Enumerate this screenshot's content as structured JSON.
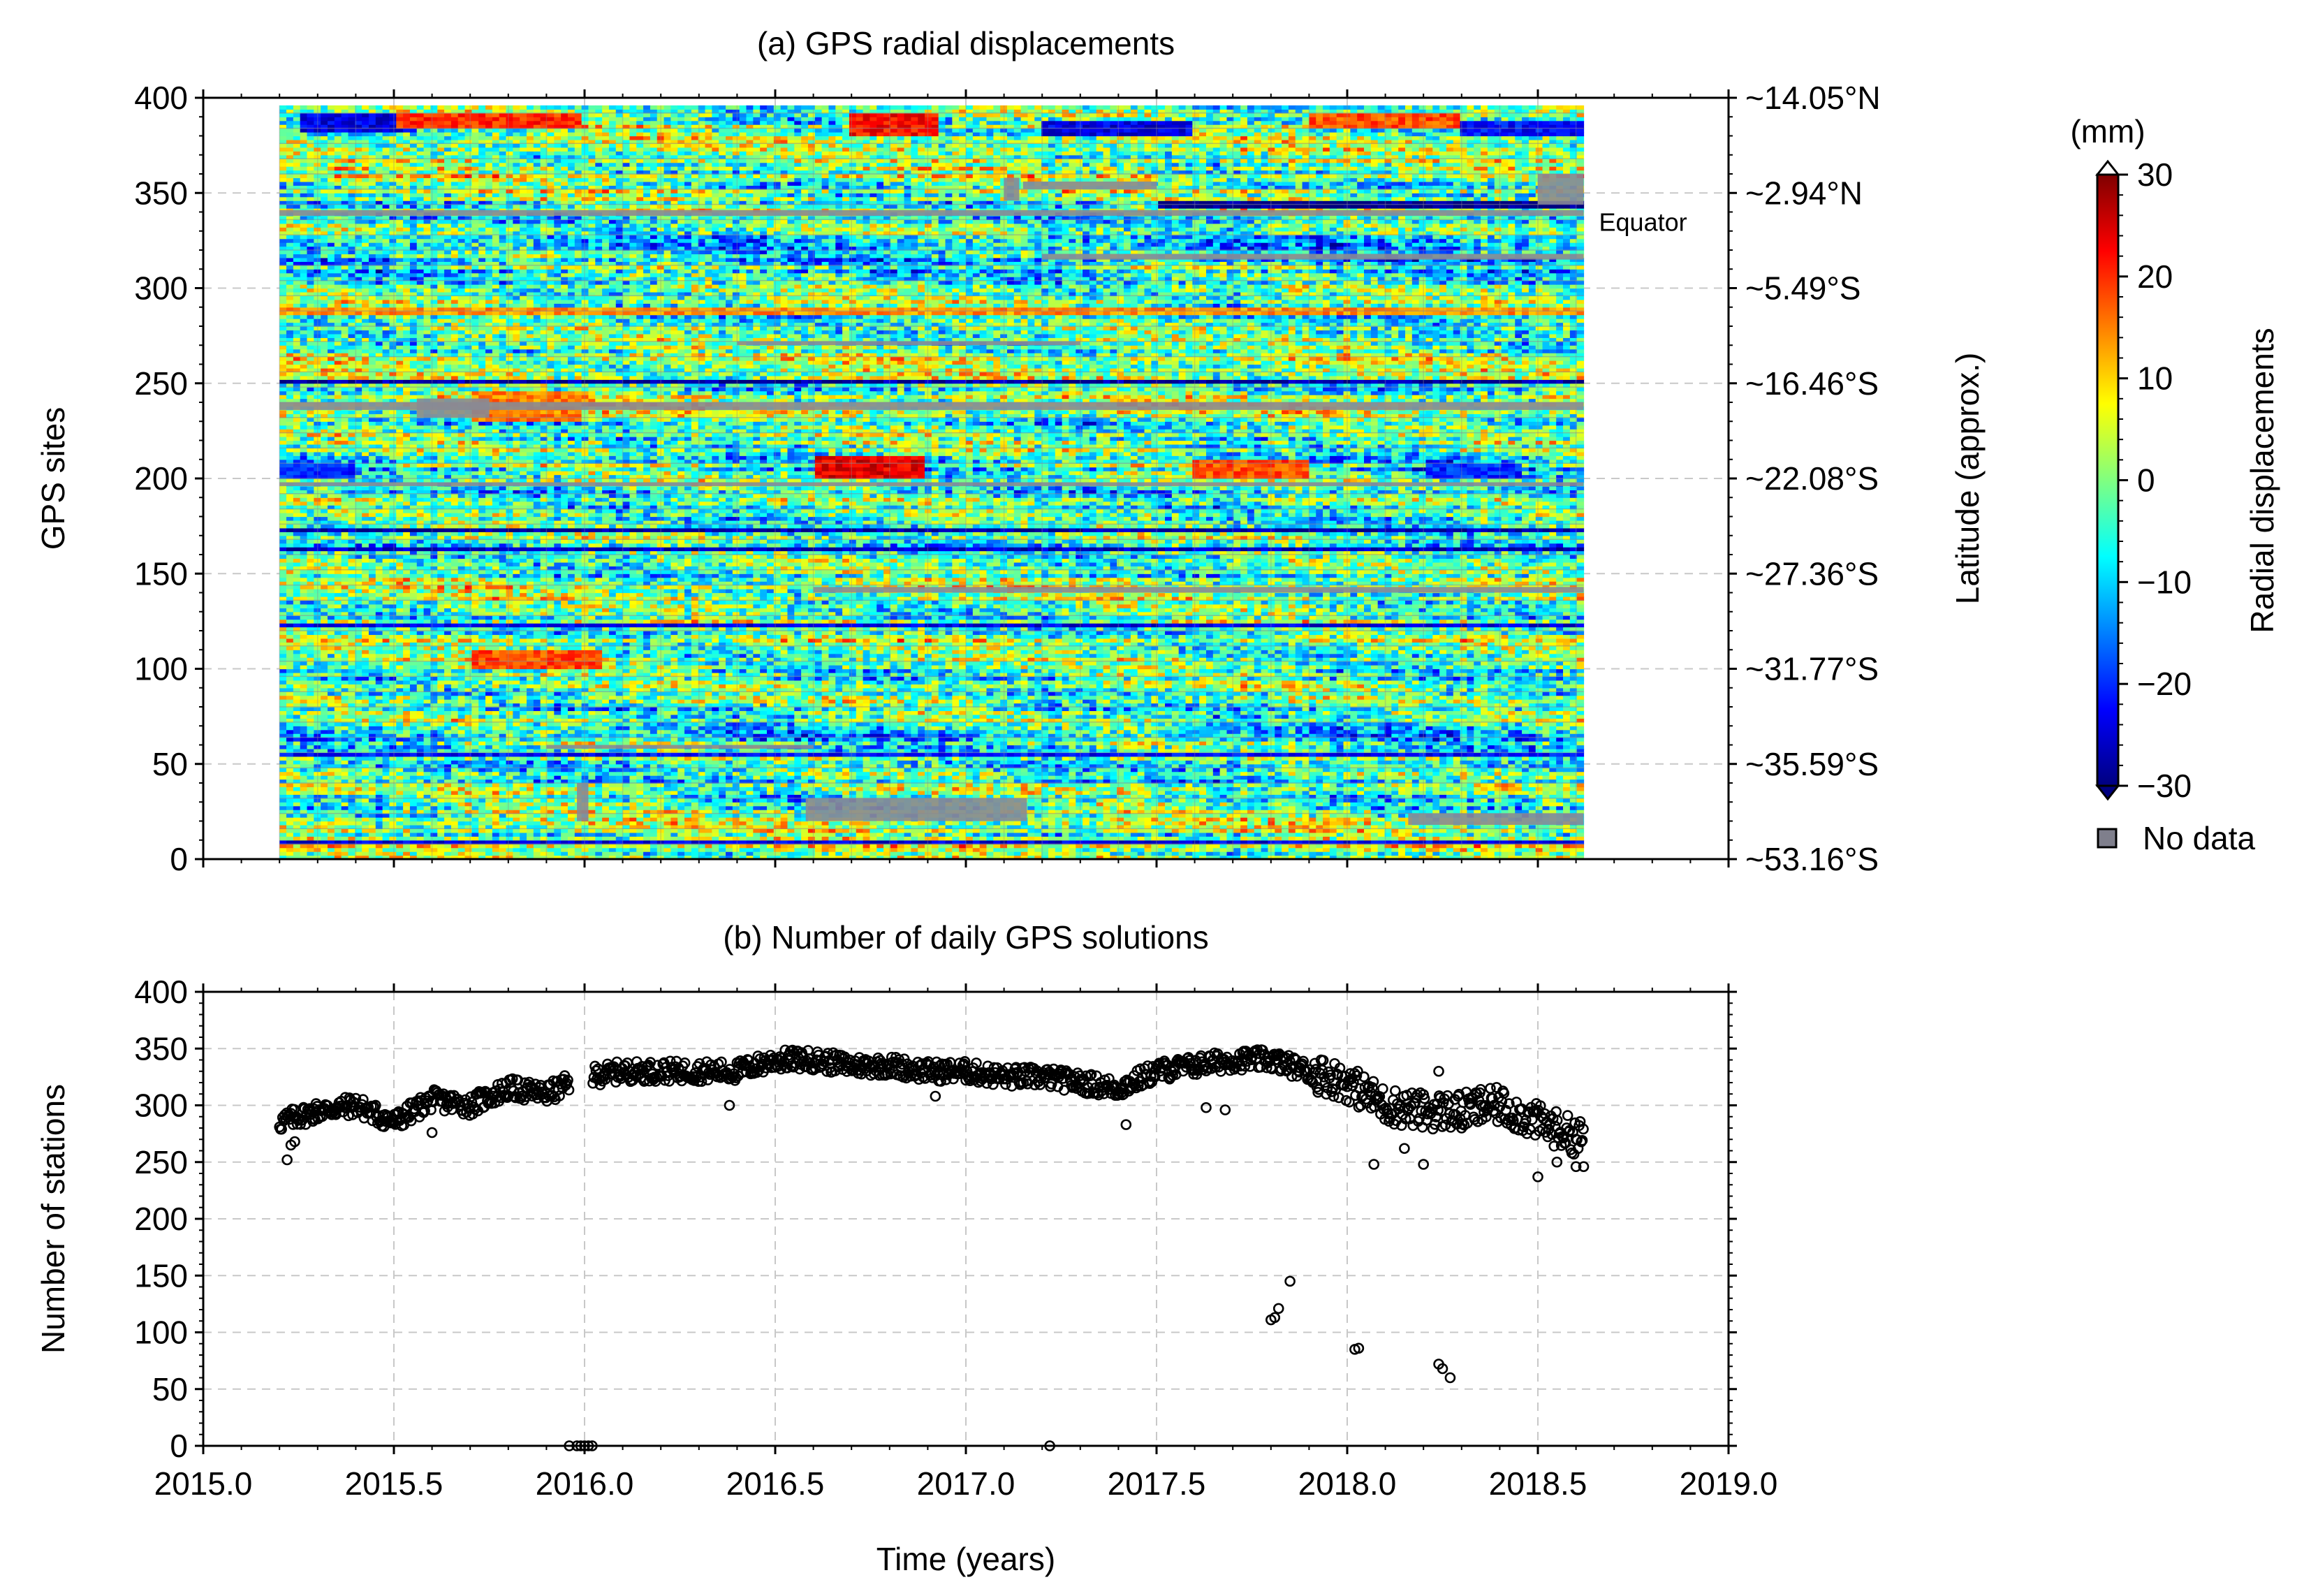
{
  "chart_data": [
    {
      "panel": "a",
      "type": "heatmap",
      "title": "(a) GPS radial displacements",
      "ylabel": "GPS sites",
      "ylabel_right": "Latitude (approx.)",
      "xlim": [
        2015.0,
        2019.0
      ],
      "ylim": [
        0,
        400
      ],
      "data_extent_x": [
        2015.2,
        2018.62
      ],
      "data_extent_y": [
        0,
        396
      ],
      "yticks": [
        0,
        50,
        100,
        150,
        200,
        250,
        300,
        350,
        400
      ],
      "ytick_labels": [
        "0",
        "50",
        "100",
        "150",
        "200",
        "250",
        "300",
        "350",
        "400"
      ],
      "right_ticks": [
        0,
        50,
        100,
        150,
        200,
        250,
        300,
        350,
        400
      ],
      "right_tick_labels": [
        "~53.16°S",
        "~35.59°S",
        "~31.77°S",
        "~27.36°S",
        "~22.08°S",
        "~16.46°S",
        "~5.49°S",
        "~2.94°N",
        "~14.05°N"
      ],
      "annotation": {
        "text": "Equator",
        "x": 2018.62,
        "y": 340
      },
      "colorbar": {
        "unit": "(mm)",
        "label": "Radial displacements",
        "range": [
          -30,
          30
        ],
        "ticks": [
          -30,
          -20,
          -10,
          0,
          10,
          20,
          30
        ],
        "tick_labels": [
          "−30",
          "−20",
          "−10",
          "0",
          "10",
          "20",
          "30"
        ],
        "colormap": "jet",
        "extend": "both"
      },
      "legend": {
        "label": "No data",
        "color": "#7f7f8c"
      },
      "grid": true,
      "colors": {
        "nodata": "#8a8a94"
      },
      "nodata_blocks": [
        {
          "x": [
            2015.56,
            2015.75
          ],
          "y": [
            232,
            242
          ]
        },
        {
          "x": [
            2015.98,
            2016.01
          ],
          "y": [
            20,
            40
          ]
        },
        {
          "x": [
            2016.58,
            2017.16
          ],
          "y": [
            20,
            32
          ]
        },
        {
          "x": [
            2017.1,
            2017.14
          ],
          "y": [
            346,
            358
          ]
        },
        {
          "x": [
            2017.15,
            2017.5
          ],
          "y": [
            352,
            356
          ]
        },
        {
          "x": [
            2018.5,
            2018.62
          ],
          "y": [
            344,
            360
          ]
        },
        {
          "x": [
            2018.16,
            2018.62
          ],
          "y": [
            18,
            24
          ]
        },
        {
          "x": [
            2015.2,
            2018.62
          ],
          "y": [
            236,
            240
          ]
        },
        {
          "x": [
            2015.2,
            2018.62
          ],
          "y": [
            338,
            341
          ]
        },
        {
          "x": [
            2016.6,
            2018.62
          ],
          "y": [
            140,
            143
          ]
        },
        {
          "x": [
            2017.2,
            2018.62
          ],
          "y": [
            315,
            318
          ]
        },
        {
          "x": [
            2015.9,
            2016.6
          ],
          "y": [
            58,
            60
          ]
        },
        {
          "x": [
            2016.4,
            2017.3
          ],
          "y": [
            270,
            272
          ]
        },
        {
          "x": [
            2015.2,
            2018.62
          ],
          "y": [
            196,
            198
          ]
        }
      ],
      "anomaly_bands": [
        {
          "x": [
            2015.25,
            2015.55
          ],
          "y": [
            383,
            392
          ],
          "value": -24
        },
        {
          "x": [
            2015.5,
            2016.0
          ],
          "y": [
            385,
            392
          ],
          "value": 20
        },
        {
          "x": [
            2016.7,
            2016.92
          ],
          "y": [
            380,
            392
          ],
          "value": 22
        },
        {
          "x": [
            2017.2,
            2017.6
          ],
          "y": [
            380,
            388
          ],
          "value": -24
        },
        {
          "x": [
            2017.9,
            2018.3
          ],
          "y": [
            384,
            392
          ],
          "value": 18
        },
        {
          "x": [
            2018.3,
            2018.62
          ],
          "y": [
            380,
            388
          ],
          "value": -22
        },
        {
          "x": [
            2017.5,
            2018.62
          ],
          "y": [
            342,
            346
          ],
          "value": -30
        },
        {
          "x": [
            2016.6,
            2016.9
          ],
          "y": [
            200,
            212
          ],
          "value": 24
        },
        {
          "x": [
            2017.6,
            2017.9
          ],
          "y": [
            200,
            210
          ],
          "value": 18
        },
        {
          "x": [
            2018.2,
            2018.45
          ],
          "y": [
            200,
            208
          ],
          "value": -20
        },
        {
          "x": [
            2015.2,
            2015.4
          ],
          "y": [
            200,
            208
          ],
          "value": -20
        },
        {
          "x": [
            2015.2,
            2018.62
          ],
          "y": [
            250,
            252
          ],
          "value": -28
        },
        {
          "x": [
            2015.2,
            2018.62
          ],
          "y": [
            172,
            173
          ],
          "value": -28
        },
        {
          "x": [
            2015.2,
            2018.62
          ],
          "y": [
            287,
            289
          ],
          "value": 14
        },
        {
          "x": [
            2015.2,
            2018.62
          ],
          "y": [
            162,
            163
          ],
          "value": -26
        },
        {
          "x": [
            2015.2,
            2018.62
          ],
          "y": [
            122,
            123
          ],
          "value": -24
        },
        {
          "x": [
            2015.2,
            2018.62
          ],
          "y": [
            54,
            56
          ],
          "value": -22
        },
        {
          "x": [
            2015.2,
            2018.62
          ],
          "y": [
            8,
            10
          ],
          "value": -24
        },
        {
          "x": [
            2015.7,
            2016.05
          ],
          "y": [
            100,
            110
          ],
          "value": 18
        },
        {
          "x": [
            2015.7,
            2016.0
          ],
          "y": [
            230,
            245
          ],
          "value": 15
        }
      ]
    },
    {
      "panel": "b",
      "type": "scatter",
      "title": "(b) Number of daily GPS solutions",
      "xlabel": "Time (years)",
      "ylabel": "Number of stations",
      "xlim": [
        2015.0,
        2019.0
      ],
      "ylim": [
        0,
        400
      ],
      "xticks": [
        2015.0,
        2015.5,
        2016.0,
        2016.5,
        2017.0,
        2017.5,
        2018.0,
        2018.5,
        2019.0
      ],
      "xtick_labels": [
        "2015.0",
        "2015.5",
        "2016.0",
        "2016.5",
        "2017.0",
        "2017.5",
        "2018.0",
        "2018.5",
        "2019.0"
      ],
      "yticks": [
        0,
        50,
        100,
        150,
        200,
        250,
        300,
        350,
        400
      ],
      "ytick_labels": [
        "0",
        "50",
        "100",
        "150",
        "200",
        "250",
        "300",
        "350",
        "400"
      ],
      "grid": true,
      "marker": "open circle",
      "trend": {
        "x": [
          2015.2,
          2015.3,
          2015.4,
          2015.5,
          2015.6,
          2015.7,
          2015.8,
          2015.9,
          2016.0,
          2016.1,
          2016.2,
          2016.3,
          2016.4,
          2016.5,
          2016.6,
          2016.7,
          2016.8,
          2016.9,
          2017.0,
          2017.1,
          2017.2,
          2017.3,
          2017.4,
          2017.5,
          2017.6,
          2017.7,
          2017.8,
          2017.9,
          2018.0,
          2018.1,
          2018.2,
          2018.3,
          2018.4,
          2018.5,
          2018.62
        ],
        "values": [
          285,
          295,
          300,
          285,
          305,
          300,
          315,
          310,
          325,
          330,
          330,
          330,
          330,
          340,
          340,
          335,
          335,
          330,
          330,
          325,
          325,
          320,
          315,
          330,
          335,
          340,
          340,
          330,
          320,
          300,
          295,
          295,
          300,
          285,
          270
        ]
      },
      "outliers": [
        {
          "x": 2015.22,
          "y": 252
        },
        {
          "x": 2015.23,
          "y": 265
        },
        {
          "x": 2015.24,
          "y": 268
        },
        {
          "x": 2015.6,
          "y": 276
        },
        {
          "x": 2016.38,
          "y": 300
        },
        {
          "x": 2016.92,
          "y": 308
        },
        {
          "x": 2017.42,
          "y": 283
        },
        {
          "x": 2017.63,
          "y": 298
        },
        {
          "x": 2017.68,
          "y": 296
        },
        {
          "x": 2017.8,
          "y": 111
        },
        {
          "x": 2017.81,
          "y": 113
        },
        {
          "x": 2017.82,
          "y": 121
        },
        {
          "x": 2017.85,
          "y": 145
        },
        {
          "x": 2018.02,
          "y": 85
        },
        {
          "x": 2018.03,
          "y": 86
        },
        {
          "x": 2018.07,
          "y": 248
        },
        {
          "x": 2018.15,
          "y": 262
        },
        {
          "x": 2018.2,
          "y": 248
        },
        {
          "x": 2018.24,
          "y": 72
        },
        {
          "x": 2018.25,
          "y": 68
        },
        {
          "x": 2018.27,
          "y": 60
        },
        {
          "x": 2018.24,
          "y": 330
        },
        {
          "x": 2018.3,
          "y": 280
        },
        {
          "x": 2018.35,
          "y": 314
        },
        {
          "x": 2018.5,
          "y": 237
        },
        {
          "x": 2018.55,
          "y": 250
        },
        {
          "x": 2018.6,
          "y": 246
        },
        {
          "x": 2018.62,
          "y": 246
        },
        {
          "x": 2015.96,
          "y": 0
        },
        {
          "x": 2015.98,
          "y": 0
        },
        {
          "x": 2015.99,
          "y": 0
        },
        {
          "x": 2016.0,
          "y": 0
        },
        {
          "x": 2016.01,
          "y": 0
        },
        {
          "x": 2016.02,
          "y": 0
        },
        {
          "x": 2017.22,
          "y": 0
        }
      ],
      "gap": {
        "x": [
          2015.96,
          2016.02
        ]
      }
    }
  ]
}
